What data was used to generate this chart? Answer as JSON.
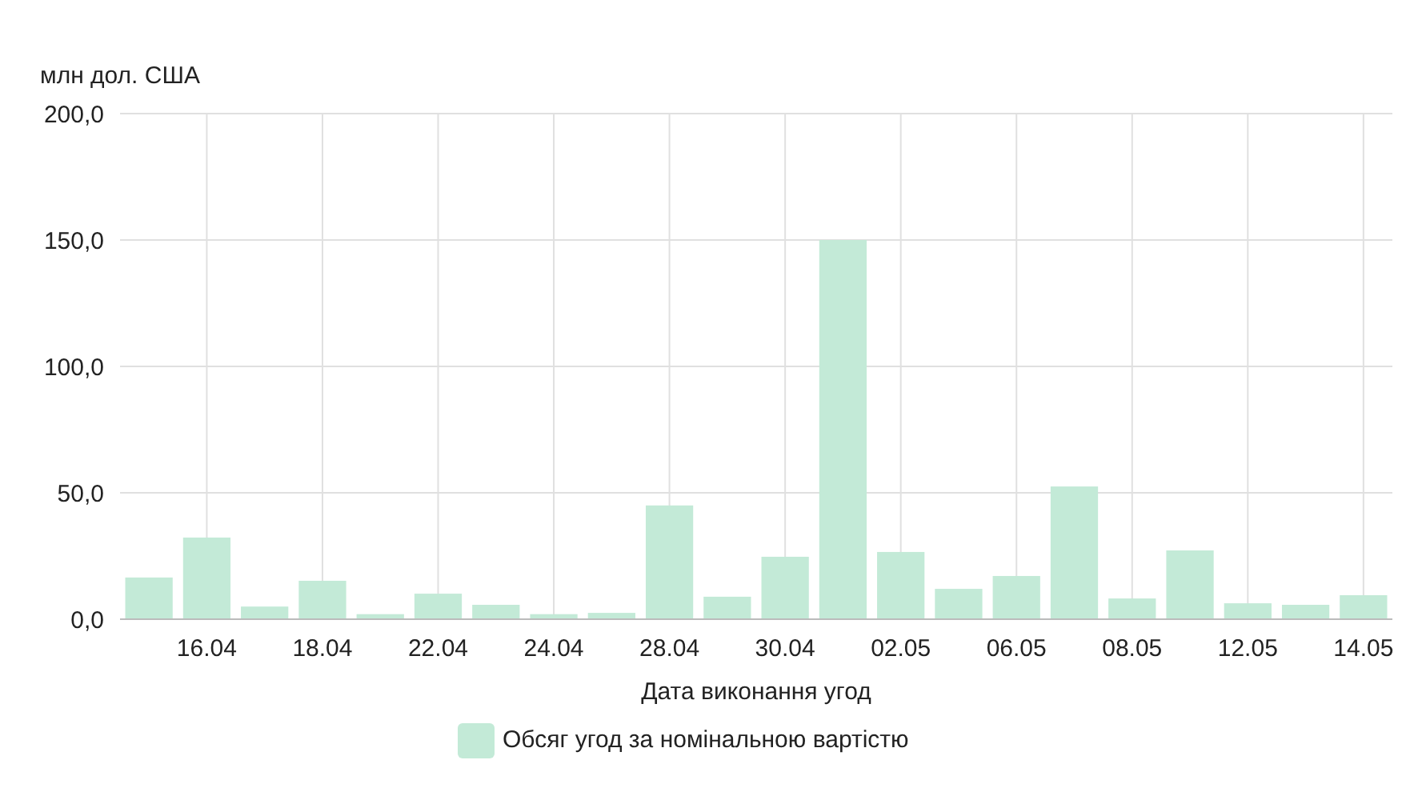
{
  "chart_data": {
    "type": "bar",
    "ylabel": "млн дол. США",
    "xlabel": "Дата виконання угод",
    "categories": [
      null,
      "16.04",
      null,
      "18.04",
      null,
      "22.04",
      null,
      "24.04",
      null,
      "28.04",
      null,
      "30.04",
      null,
      "02.05",
      null,
      "06.05",
      null,
      "08.05",
      null,
      "12.05",
      null,
      "14.05"
    ],
    "series": [
      {
        "name": "Обсяг угод за номінальною вартістю",
        "color": "#c3ead7",
        "values": [
          16.5,
          32.3,
          5,
          15.2,
          2,
          10.1,
          5.7,
          2,
          2.5,
          45,
          8.9,
          24.7,
          150,
          26.6,
          12,
          17.1,
          52.5,
          8.2,
          27.2,
          6.3,
          5.7,
          9.5
        ]
      }
    ],
    "ylim": [
      0,
      200
    ],
    "yticks": [
      {
        "value": 0,
        "label": "0,0"
      },
      {
        "value": 50,
        "label": "50,0"
      },
      {
        "value": 100,
        "label": "100,0"
      },
      {
        "value": 150,
        "label": "150,0"
      },
      {
        "value": 200,
        "label": "200,0"
      }
    ],
    "grid": true,
    "legend": "bottom"
  }
}
